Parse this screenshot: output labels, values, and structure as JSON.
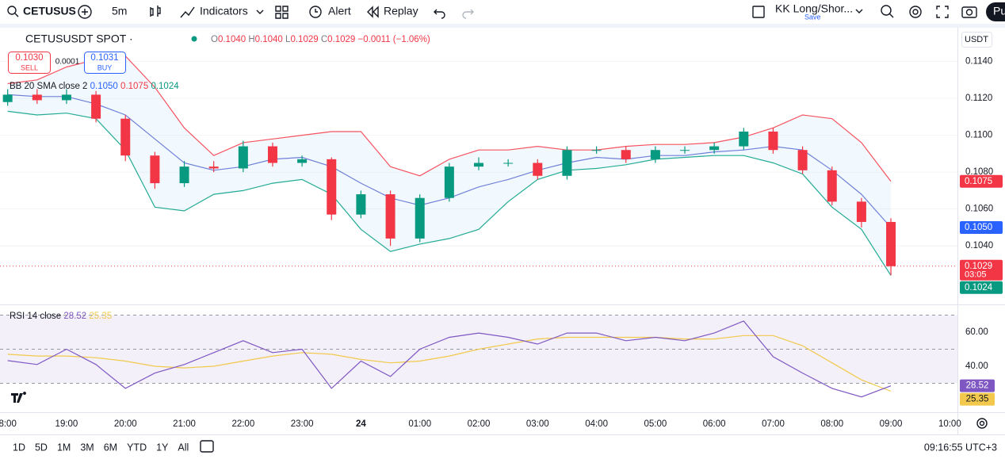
{
  "toolbar": {
    "symbol": "CETUSUS",
    "interval": "5m",
    "indicators": "Indicators",
    "alert": "Alert",
    "replay": "Replay",
    "layout_name": "KK Long/Shor...",
    "layout_status": "Save",
    "publish": "Pu"
  },
  "chart_data": [
    {
      "type": "candlestick",
      "title": "CETUSUSDT SPOT ·",
      "unit": "USDT",
      "ohlc_legend": [
        {
          "key": "O",
          "value": "0.1040"
        },
        {
          "key": "H",
          "value": "0.1040"
        },
        {
          "key": "L",
          "value": "0.1029"
        },
        {
          "key": "C",
          "value": "0.1029"
        }
      ],
      "change": "−0.0011 (−1.06%)",
      "quote": {
        "sell_price": "0.1030",
        "sell_label": "SELL",
        "spread": "0.0001",
        "buy_price": "0.1031",
        "buy_label": "BUY"
      },
      "indicator": "BB 20 SMA close 2",
      "indicator_values": [
        "0.1050",
        "0.1075",
        "0.1024"
      ],
      "x": [
        0,
        0.5,
        1,
        1.5,
        2,
        2.5,
        3,
        3.5,
        4,
        4.5,
        5,
        5.5,
        6,
        6.5,
        7,
        7.5,
        8,
        8.5,
        9,
        9.5,
        10,
        10.5,
        11,
        11.5,
        12,
        12.5,
        13,
        13.5,
        14,
        14.5,
        15
      ],
      "open": [
        0.1118,
        0.1122,
        0.1119,
        0.1122,
        0.1109,
        0.1089,
        0.1074,
        0.1083,
        0.1082,
        0.1094,
        0.1085,
        0.1087,
        0.1057,
        0.1068,
        0.1044,
        0.1066,
        0.1083,
        0.1085,
        0.1085,
        0.1078,
        0.1092,
        0.1092,
        0.1087,
        0.1092,
        0.1092,
        0.1094,
        0.1102,
        0.1092,
        0.1081,
        0.1064,
        0.1053
      ],
      "high": [
        0.1125,
        0.1125,
        0.1125,
        0.1124,
        0.1111,
        0.1091,
        0.1086,
        0.1086,
        0.1097,
        0.1096,
        0.1089,
        0.1088,
        0.107,
        0.107,
        0.1068,
        0.1085,
        0.1088,
        0.1087,
        0.1087,
        0.1094,
        0.1094,
        0.1094,
        0.1094,
        0.1094,
        0.1096,
        0.1104,
        0.1104,
        0.1094,
        0.1083,
        0.1066,
        0.1055
      ],
      "low": [
        0.1116,
        0.1117,
        0.1117,
        0.1107,
        0.1086,
        0.1071,
        0.1072,
        0.108,
        0.108,
        0.1083,
        0.1083,
        0.1054,
        0.1055,
        0.104,
        0.1042,
        0.1064,
        0.1081,
        0.1083,
        0.1076,
        0.1076,
        0.109,
        0.1085,
        0.1085,
        0.109,
        0.109,
        0.1092,
        0.109,
        0.1079,
        0.1062,
        0.105,
        0.1024
      ],
      "close": [
        0.1122,
        0.1119,
        0.1122,
        0.1109,
        0.1089,
        0.1074,
        0.1083,
        0.1082,
        0.1094,
        0.1085,
        0.1087,
        0.1057,
        0.1068,
        0.1044,
        0.1066,
        0.1083,
        0.1085,
        0.1085,
        0.1078,
        0.1092,
        0.1092,
        0.1087,
        0.1092,
        0.1092,
        0.1094,
        0.1102,
        0.1092,
        0.1081,
        0.1064,
        0.1053,
        0.1029
      ],
      "up_color": "#089981",
      "down_color": "#f23645",
      "series": [
        {
          "color": "#f7525f",
          "values": [
            0.1128,
            0.113,
            0.1137,
            0.1141,
            0.1143,
            0.1126,
            0.1104,
            0.1089,
            0.1096,
            0.1098,
            0.11,
            0.1102,
            0.1102,
            0.1083,
            0.1078,
            0.1087,
            0.1092,
            0.1092,
            0.1094,
            0.1092,
            0.1092,
            0.1094,
            0.1095,
            0.1095,
            0.1096,
            0.1099,
            0.1104,
            0.1111,
            0.1109,
            0.1096,
            0.1075
          ]
        },
        {
          "color": "#6f7fd8",
          "values": [
            0.1122,
            0.1121,
            0.1121,
            0.1117,
            0.1111,
            0.1098,
            0.1085,
            0.1081,
            0.1083,
            0.1087,
            0.1088,
            0.1083,
            0.1074,
            0.1066,
            0.1062,
            0.1066,
            0.1072,
            0.1076,
            0.1081,
            0.1085,
            0.1088,
            0.1087,
            0.1089,
            0.1089,
            0.1091,
            0.1092,
            0.1094,
            0.1092,
            0.1081,
            0.1068,
            0.105
          ]
        },
        {
          "color": "#22ab94",
          "values": [
            0.1113,
            0.1111,
            0.1112,
            0.1109,
            0.1092,
            0.1061,
            0.1059,
            0.1068,
            0.107,
            0.1074,
            0.1076,
            0.1068,
            0.1049,
            0.1037,
            0.1041,
            0.1044,
            0.1049,
            0.1064,
            0.1076,
            0.1081,
            0.1082,
            0.1084,
            0.1087,
            0.1088,
            0.1089,
            0.1089,
            0.1085,
            0.1079,
            0.1061,
            0.1049,
            0.1024
          ]
        }
      ],
      "band_fill": "#2196f3",
      "xlim": [
        -0.13,
        16.13
      ],
      "ylim": [
        0.101,
        0.1157
      ],
      "yticks": [
        {
          "value": 0.114,
          "label": "0.1140"
        },
        {
          "value": 0.112,
          "label": "0.1120"
        },
        {
          "value": 0.11,
          "label": "0.1100"
        },
        {
          "value": 0.108,
          "label": "0.1080"
        },
        {
          "value": 0.106,
          "label": "0.1060"
        },
        {
          "value": 0.104,
          "label": "0.1040"
        }
      ],
      "grid": true,
      "badges": [
        {
          "value": 0.1075,
          "label": "0.1075",
          "color": "#f23645"
        },
        {
          "value": 0.105,
          "label": "0.1050",
          "color": "#2962ff"
        },
        {
          "value": 0.1029,
          "label": "0.1029",
          "sublabel": "03:05",
          "color": "#f23645"
        },
        {
          "value": 0.1024,
          "label": "0.1024",
          "color": "#089981"
        }
      ]
    },
    {
      "type": "line",
      "title": "RSI 14 close",
      "x": [
        0,
        0.5,
        1,
        1.5,
        2,
        2.5,
        3,
        3.5,
        4,
        4.5,
        5,
        5.5,
        6,
        6.5,
        7,
        7.5,
        8,
        8.5,
        9,
        9.5,
        10,
        10.5,
        11,
        11.5,
        12,
        12.5,
        13,
        13.5,
        14,
        14.5,
        15
      ],
      "series": [
        {
          "color": "#7e57c2",
          "values": [
            43.3,
            41,
            50,
            41,
            27,
            36,
            41,
            48,
            55,
            48,
            50,
            27,
            43,
            34,
            50,
            57,
            59.5,
            57,
            53,
            59.5,
            59.5,
            55,
            57,
            55,
            59.5,
            66.5,
            45.6,
            36,
            27,
            22,
            28.52
          ]
        },
        {
          "color": "#f2c94c",
          "values": [
            47,
            46,
            46,
            45,
            43,
            40,
            39,
            40,
            43,
            46,
            48,
            47,
            44,
            42,
            43,
            46,
            50,
            53,
            56,
            57,
            57,
            57,
            57,
            56,
            56,
            58,
            58,
            52,
            42,
            32,
            25.35
          ]
        }
      ],
      "levels": [
        70,
        50,
        30
      ],
      "level_fill": "#7e57c2",
      "xlim": [
        -0.13,
        16.13
      ],
      "ylim": [
        13,
        73.5
      ],
      "yticks": [
        {
          "value": 60,
          "label": "60.00"
        },
        {
          "value": 40,
          "label": "40.00"
        }
      ],
      "xticks": [
        {
          "value": 0,
          "label": "8:00"
        },
        {
          "value": 1,
          "label": "19:00"
        },
        {
          "value": 2,
          "label": "20:00"
        },
        {
          "value": 3,
          "label": "21:00"
        },
        {
          "value": 4,
          "label": "22:00"
        },
        {
          "value": 5,
          "label": "23:00"
        },
        {
          "value": 6,
          "label": "24"
        },
        {
          "value": 7,
          "label": "01:00"
        },
        {
          "value": 8,
          "label": "02:00"
        },
        {
          "value": 9,
          "label": "03:00"
        },
        {
          "value": 10,
          "label": "04:00"
        },
        {
          "value": 11,
          "label": "05:00"
        },
        {
          "value": 12,
          "label": "06:00"
        },
        {
          "value": 13,
          "label": "07:00"
        },
        {
          "value": 14,
          "label": "08:00"
        },
        {
          "value": 15,
          "label": "09:00"
        },
        {
          "value": 16,
          "label": "10:00"
        }
      ]
    }
  ],
  "bottom_bar": {
    "ranges": [
      "1D",
      "5D",
      "1M",
      "3M",
      "6M",
      "YTD",
      "1Y",
      "All"
    ],
    "clock": "09:16:55 UTC+3"
  }
}
